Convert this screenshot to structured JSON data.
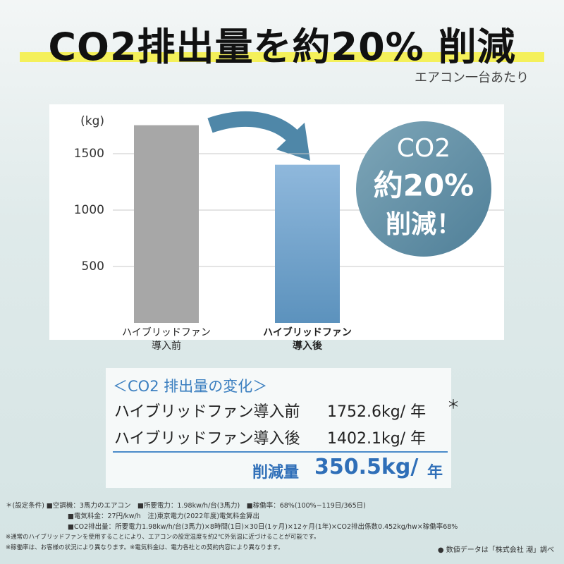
{
  "chart_data": {
    "type": "bar",
    "title": "CO2排出量を約20% 削減",
    "subtitle": "エアコン一台あたり",
    "y_label": "(kg)",
    "categories": [
      "ハイブリッドファン\n導入前",
      "ハイブリッドファン\n導入後"
    ],
    "values": [
      1752.6,
      1402.1
    ],
    "colors": [
      "#a7a7a7",
      "#6fa2cc"
    ],
    "ylim": [
      0,
      1800
    ],
    "yticks": [
      500,
      1000,
      1500
    ],
    "grid": true,
    "badge": [
      "CO2",
      "約20%",
      "削減！"
    ]
  },
  "summary": {
    "heading": "＜CO2 排出量の変化＞",
    "rows": [
      [
        "ハイブリッドファン導入前",
        "1752.6kg/ 年",
        "＊"
      ],
      [
        "ハイブリッドファン導入後",
        "1402.1kg/ 年"
      ]
    ],
    "reduction_label": "削減量",
    "reduction_value": "350.5kg/",
    "reduction_unit": "年"
  },
  "notes": [
    "＊(設定条件) ■空調機：3馬力のエアコン　■所要電力：1.98kw/h/台(3馬力)　■稼働率：68%(100%−119日/365日)",
    "■電気料金：27円/kw/h　注)東京電力(2022年度)電気料金算出",
    "■CO2排出量：所要電力1.98kw/h/台(3馬力)×8時間(1日)×30日(1ヶ月)×12ヶ月(1年)×CO2排出係数0.452kg/hw×稼働率68%",
    "※通常のハイブリッドファンを使用することにより、エアコンの設定温度を約2℃外気温に近づけることが可能です。",
    "※稼働率は、お客様の状況により異なります。※電気料金は、電力各社との契約内容により異なります。"
  ],
  "source": "● 数値データは「株式会社 潮」調べ"
}
